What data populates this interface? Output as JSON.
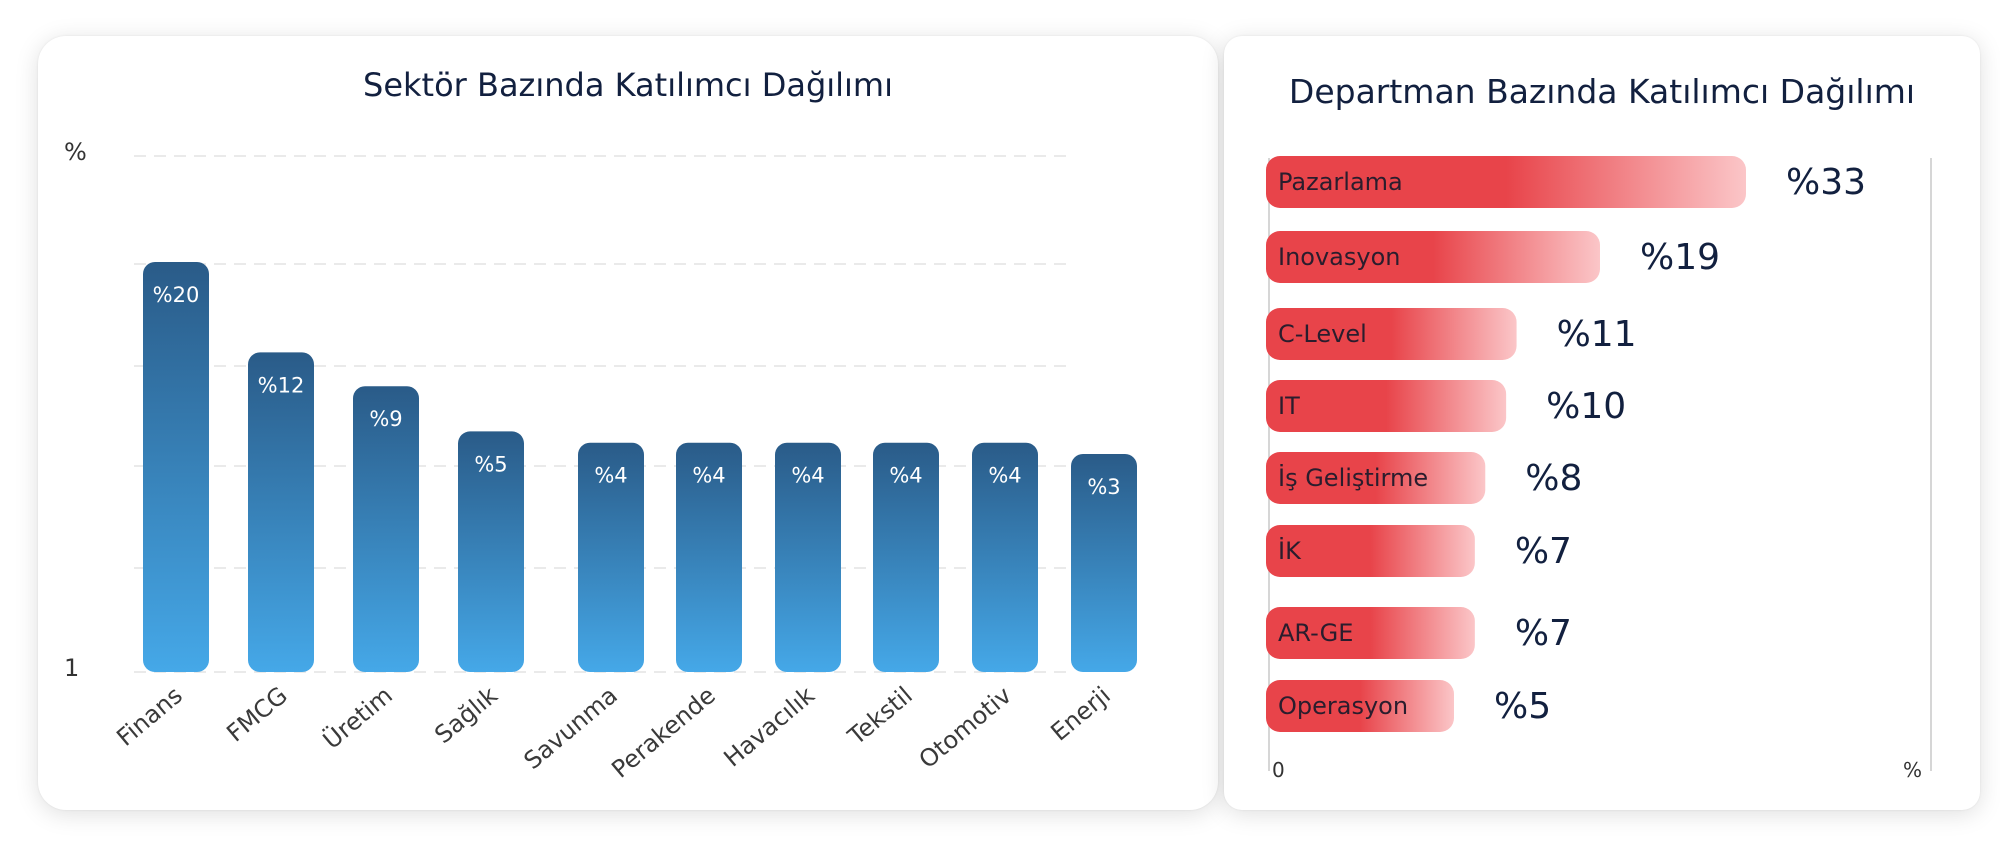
{
  "chart_data": [
    {
      "type": "bar",
      "title": "Sektör Bazında Katılımcı Dağılımı",
      "ylabel": "%",
      "y_axis_bottom_label": "1",
      "categories": [
        "Finans",
        "FMCG",
        "Üretim",
        "Sağlık",
        "Savunma",
        "Perakende",
        "Havacılık",
        "Tekstil",
        "Otomotiv",
        "Enerji"
      ],
      "values": [
        20,
        12,
        9,
        5,
        4,
        4,
        4,
        4,
        4,
        3
      ],
      "labels": [
        "%20",
        "%12",
        "%9",
        "%5",
        "%4",
        "%4",
        "%4",
        "%4",
        "%4",
        "%3"
      ],
      "grid": true,
      "colors": {
        "bar_top": "#2a5b88",
        "bar_bottom": "#45a8e8"
      }
    },
    {
      "type": "bar",
      "orientation": "horizontal",
      "title": "Departman Bazında Katılımcı Dağılımı",
      "xlabel": "%",
      "x_axis_left_label": "0",
      "categories": [
        "Pazarlama",
        "Inovasyon",
        "C-Level",
        "IT",
        "İş Geliştirme",
        "İK",
        "AR-GE",
        "Operasyon"
      ],
      "values": [
        33,
        19,
        11,
        10,
        8,
        7,
        7,
        5
      ],
      "labels": [
        "%33",
        "%19",
        "%11",
        "%10",
        "%8",
        "%7",
        "%7",
        "%5"
      ],
      "colors": {
        "bar_main": "#e8444a",
        "bar_fade": "#fbc6c8"
      }
    }
  ]
}
